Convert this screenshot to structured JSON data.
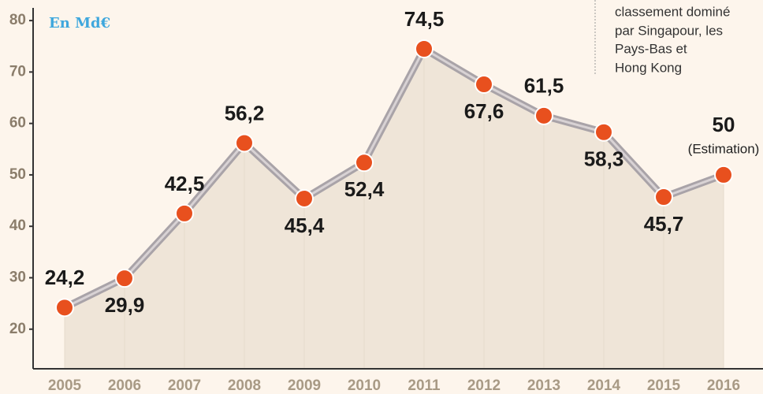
{
  "chart_data": {
    "type": "line",
    "unit_label": "En Md€",
    "annotation": [
      "classement dominé",
      "par Singapour, les",
      "Pays-Bas et",
      "Hong Kong"
    ],
    "note": "(Estimation)",
    "categories": [
      "2005",
      "2006",
      "2007",
      "2008",
      "2009",
      "2010",
      "2011",
      "2012",
      "2013",
      "2014",
      "2015",
      "2016"
    ],
    "values": [
      24.2,
      29.9,
      42.5,
      56.2,
      45.4,
      52.4,
      74.5,
      67.6,
      61.5,
      58.3,
      45.7,
      50
    ],
    "value_labels": [
      "24,2",
      "29,9",
      "42,5",
      "56,2",
      "45,4",
      "52,4",
      "74,5",
      "67,6",
      "61,5",
      "58,3",
      "45,7",
      "50"
    ],
    "color": "#e8501e",
    "line_color": "#a9a3a8",
    "ylim": [
      12.3,
      84
    ],
    "yticks": [
      20,
      30,
      40,
      50,
      60,
      70,
      80
    ]
  }
}
